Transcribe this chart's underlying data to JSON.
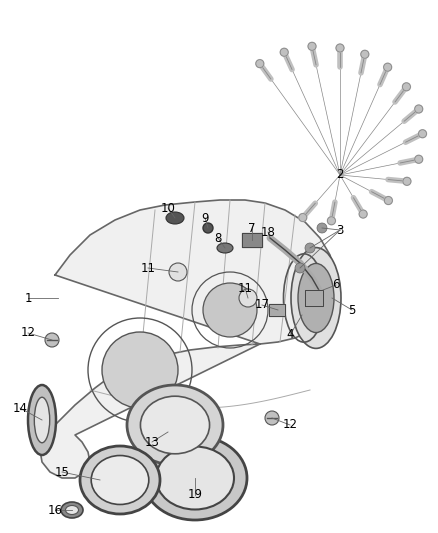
{
  "background_color": "#ffffff",
  "figsize": [
    4.38,
    5.33
  ],
  "dpi": 100,
  "line_color": "#555555",
  "label_color": "#000000",
  "bolt_color": "#aaaaaa",
  "case_fill": "#f0f0f0",
  "case_edge": "#666666",
  "ring_fill": "#d8d8d8",
  "ring_edge": "#444444"
}
